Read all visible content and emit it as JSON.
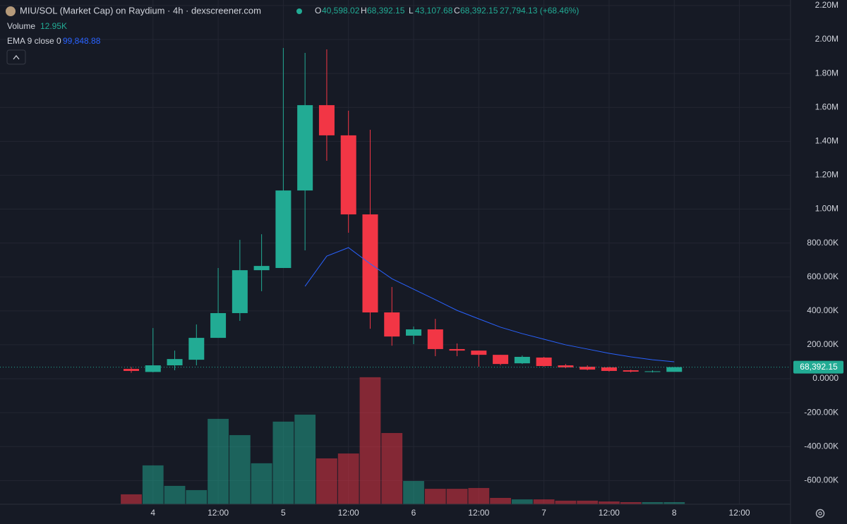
{
  "chart_data": {
    "type": "candlestick",
    "legend": {
      "title": "MIU/SOL (Market Cap) on Raydium · 4h · dexscreener.com",
      "open_label": "O",
      "open": "40,598.02",
      "high_label": "H",
      "high": "68,392.15",
      "low_label": "L",
      "low": "43,107.68",
      "close_label": "C",
      "close": "68,392.15",
      "change": "27,794.13 (+68.46%)",
      "volume_label": "Volume",
      "volume": "12.95K",
      "ema_label": "EMA 9 close 0",
      "ema": "99,848.88"
    },
    "price_tag": "68,392.15",
    "categories": [
      null,
      "4",
      null,
      null,
      "12:00",
      null,
      null,
      "5",
      null,
      null,
      "12:00",
      null,
      null,
      "6",
      null,
      null,
      "12:00",
      null,
      null,
      "7",
      null,
      null,
      "12:00",
      null,
      null,
      "8",
      null,
      null,
      "12:00"
    ],
    "open": [
      58000,
      40000,
      79000,
      112000,
      241000,
      387000,
      640000,
      653000,
      1110000,
      1613000,
      1435000,
      969000,
      391000,
      254000,
      291000,
      175000,
      166000,
      141000,
      91000,
      125000,
      79000,
      71000,
      67000,
      50000,
      40000,
      40598.02,
      null,
      null,
      null
    ],
    "high": [
      70000,
      299000,
      166000,
      320000,
      653000,
      819000,
      852000,
      1950000,
      1921000,
      1942000,
      1580000,
      1468000,
      541000,
      308000,
      353000,
      208000,
      166000,
      141000,
      137000,
      129000,
      87000,
      79000,
      71000,
      54000,
      50000,
      68392.15,
      null,
      null,
      null
    ],
    "low": [
      35000,
      38000,
      50000,
      79000,
      245000,
      341000,
      516000,
      653000,
      757000,
      1285000,
      861000,
      295000,
      195000,
      204000,
      133000,
      133000,
      71000,
      79000,
      87000,
      71000,
      62000,
      50000,
      42000,
      37000,
      37000,
      43107.68,
      null,
      null,
      null
    ],
    "close": [
      46000,
      79000,
      116000,
      241000,
      387000,
      640000,
      665000,
      1110000,
      1613000,
      1435000,
      969000,
      391000,
      249000,
      291000,
      175000,
      166000,
      141000,
      87000,
      129000,
      75000,
      67000,
      54000,
      46000,
      42000,
      44000,
      68392.15,
      null,
      null,
      null
    ],
    "volume": [
      61000,
      239000,
      113000,
      87000,
      525000,
      425000,
      252000,
      508000,
      551000,
      282000,
      312000,
      781000,
      438000,
      143000,
      95000,
      95000,
      100000,
      39000,
      30000,
      30000,
      22000,
      22000,
      17000,
      13000,
      13000,
      12950,
      null,
      null,
      null
    ],
    "ema": [
      null,
      null,
      null,
      null,
      null,
      null,
      null,
      null,
      545000,
      723000,
      773000,
      678000,
      590000,
      528000,
      466000,
      403000,
      353000,
      304000,
      266000,
      233000,
      200000,
      175000,
      150000,
      129000,
      112000,
      99848.88,
      null,
      null,
      null
    ],
    "up_color": "#22ab94",
    "down_color": "#f23645",
    "ema_color": "#2962ff",
    "ylim": [
      -740000,
      2233000
    ],
    "volume_ylim": [
      0,
      3100000
    ],
    "yticks": [
      {
        "value": 2200000,
        "label": "2.20M"
      },
      {
        "value": 2000000,
        "label": "2.00M"
      },
      {
        "value": 1800000,
        "label": "1.80M"
      },
      {
        "value": 1600000,
        "label": "1.60M"
      },
      {
        "value": 1400000,
        "label": "1.40M"
      },
      {
        "value": 1200000,
        "label": "1.20M"
      },
      {
        "value": 1000000,
        "label": "1.00M"
      },
      {
        "value": 800000,
        "label": "800.00K"
      },
      {
        "value": 600000,
        "label": "600.00K"
      },
      {
        "value": 400000,
        "label": "400.00K"
      },
      {
        "value": 200000,
        "label": "200.00K"
      },
      {
        "value": 0,
        "label": "0.0000"
      },
      {
        "value": -200000,
        "label": "-200.00K"
      },
      {
        "value": -400000,
        "label": "-400.00K"
      },
      {
        "value": -600000,
        "label": "-600.00K"
      }
    ],
    "grid": true
  }
}
